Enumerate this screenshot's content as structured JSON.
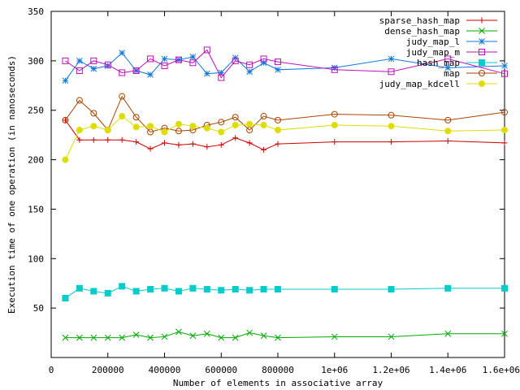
{
  "chart_data": {
    "type": "line",
    "title": "",
    "xlabel": "Number of elements in associative array",
    "ylabel": "Execution time of one operation (in nanoseconds)",
    "xlim": [
      0,
      1600000
    ],
    "ylim": [
      0,
      350
    ],
    "xticks": [
      0,
      200000,
      400000,
      600000,
      800000,
      1000000,
      1200000,
      1400000,
      1600000
    ],
    "xtick_labels": [
      "0",
      "200000",
      "400000",
      "600000",
      "800000",
      "1e+06",
      "1.2e+06",
      "1.4e+06",
      "1.6e+06"
    ],
    "yticks": [
      0,
      50,
      100,
      150,
      200,
      250,
      300,
      350
    ],
    "ytick_labels": [
      "",
      "50",
      "100",
      "150",
      "200",
      "250",
      "300",
      "350"
    ],
    "grid": false,
    "legend_position": "top-right",
    "x": [
      50000,
      100000,
      150000,
      200000,
      250000,
      300000,
      350000,
      400000,
      450000,
      500000,
      550000,
      600000,
      650000,
      700000,
      750000,
      800000,
      1000000,
      1200000,
      1400000,
      1600000
    ],
    "series": [
      {
        "name": "sparse_hash_map",
        "color": "#cc0000",
        "marker": "plus",
        "values": [
          240,
          220,
          220,
          220,
          220,
          218,
          211,
          217,
          215,
          216,
          213,
          215,
          222,
          217,
          210,
          216,
          218,
          218,
          219,
          217
        ]
      },
      {
        "name": "dense_hash_map",
        "color": "#00aa00",
        "marker": "cross",
        "values": [
          20,
          20,
          20,
          20,
          20,
          23,
          20,
          21,
          26,
          22,
          24,
          20,
          20,
          25,
          22,
          20,
          21,
          21,
          24,
          24
        ]
      },
      {
        "name": "judy_map_l",
        "color": "#1177dd",
        "marker": "star",
        "values": [
          280,
          300,
          292,
          295,
          308,
          290,
          286,
          302,
          301,
          304,
          287,
          288,
          303,
          289,
          298,
          291,
          293,
          302,
          293,
          295
        ]
      },
      {
        "name": "judy_map_m",
        "color": "#bb11bb",
        "marker": "square",
        "values": [
          300,
          290,
          300,
          296,
          288,
          290,
          302,
          295,
          301,
          298,
          311,
          283,
          300,
          296,
          302,
          299,
          291,
          289,
          302,
          287
        ]
      },
      {
        "name": "hash_map",
        "color": "#00cccc",
        "marker": "filled-square",
        "values": [
          60,
          70,
          67,
          65,
          72,
          67,
          69,
          70,
          67,
          70,
          69,
          68,
          69,
          68,
          69,
          69,
          69,
          69,
          70,
          70
        ]
      },
      {
        "name": "map",
        "color": "#aa4400",
        "marker": "circle",
        "values": [
          240,
          260,
          247,
          230,
          264,
          243,
          228,
          232,
          229,
          230,
          235,
          238,
          243,
          230,
          244,
          240,
          246,
          245,
          240,
          248
        ]
      },
      {
        "name": "judy_map_kdcell",
        "color": "#dddd00",
        "marker": "filled-circle",
        "values": [
          200,
          230,
          234,
          230,
          244,
          233,
          234,
          228,
          236,
          234,
          232,
          228,
          235,
          236,
          235,
          230,
          235,
          234,
          229,
          230
        ]
      }
    ]
  }
}
